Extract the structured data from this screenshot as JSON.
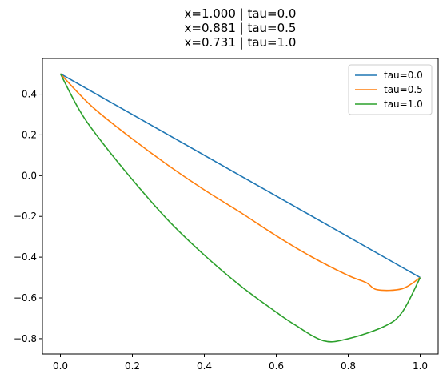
{
  "chart_data": {
    "type": "line",
    "title_lines": [
      "x=1.000 | tau=0.0",
      "x=0.881 | tau=0.5",
      "x=0.731 | tau=1.0"
    ],
    "xlabel": "",
    "ylabel": "",
    "xlim": [
      -0.05,
      1.05
    ],
    "ylim": [
      -0.875,
      0.575
    ],
    "xticks": [
      0.0,
      0.2,
      0.4,
      0.6,
      0.8,
      1.0
    ],
    "xtick_labels": [
      "0.0",
      "0.2",
      "0.4",
      "0.6",
      "0.8",
      "1.0"
    ],
    "yticks": [
      0.4,
      0.2,
      0.0,
      -0.2,
      -0.4,
      -0.6,
      -0.8
    ],
    "ytick_labels": [
      "0.4",
      "0.2",
      "0.0",
      "−0.2",
      "−0.4",
      "−0.6",
      "−0.8"
    ],
    "grid": false,
    "legend_position": "top-right",
    "series": [
      {
        "name": "tau=0.0",
        "color": "#1f77b4",
        "points": [
          [
            0.0,
            0.5
          ],
          [
            1.0,
            -0.5
          ]
        ]
      },
      {
        "name": "tau=0.5",
        "color": "#ff7f0e",
        "points": [
          [
            0.0,
            0.5
          ],
          [
            0.05,
            0.405
          ],
          [
            0.1,
            0.32
          ],
          [
            0.2,
            0.18
          ],
          [
            0.3,
            0.05
          ],
          [
            0.4,
            -0.07
          ],
          [
            0.5,
            -0.18
          ],
          [
            0.6,
            -0.295
          ],
          [
            0.7,
            -0.4
          ],
          [
            0.8,
            -0.49
          ],
          [
            0.85,
            -0.525
          ],
          [
            0.881,
            -0.56
          ],
          [
            0.95,
            -0.555
          ],
          [
            1.0,
            -0.5
          ]
        ]
      },
      {
        "name": "tau=1.0",
        "color": "#2ca02c",
        "points": [
          [
            0.0,
            0.5
          ],
          [
            0.05,
            0.33
          ],
          [
            0.1,
            0.2
          ],
          [
            0.2,
            -0.02
          ],
          [
            0.3,
            -0.22
          ],
          [
            0.4,
            -0.39
          ],
          [
            0.5,
            -0.54
          ],
          [
            0.6,
            -0.67
          ],
          [
            0.65,
            -0.73
          ],
          [
            0.731,
            -0.81
          ],
          [
            0.8,
            -0.8
          ],
          [
            0.9,
            -0.74
          ],
          [
            0.95,
            -0.67
          ],
          [
            1.0,
            -0.5
          ]
        ]
      }
    ]
  }
}
